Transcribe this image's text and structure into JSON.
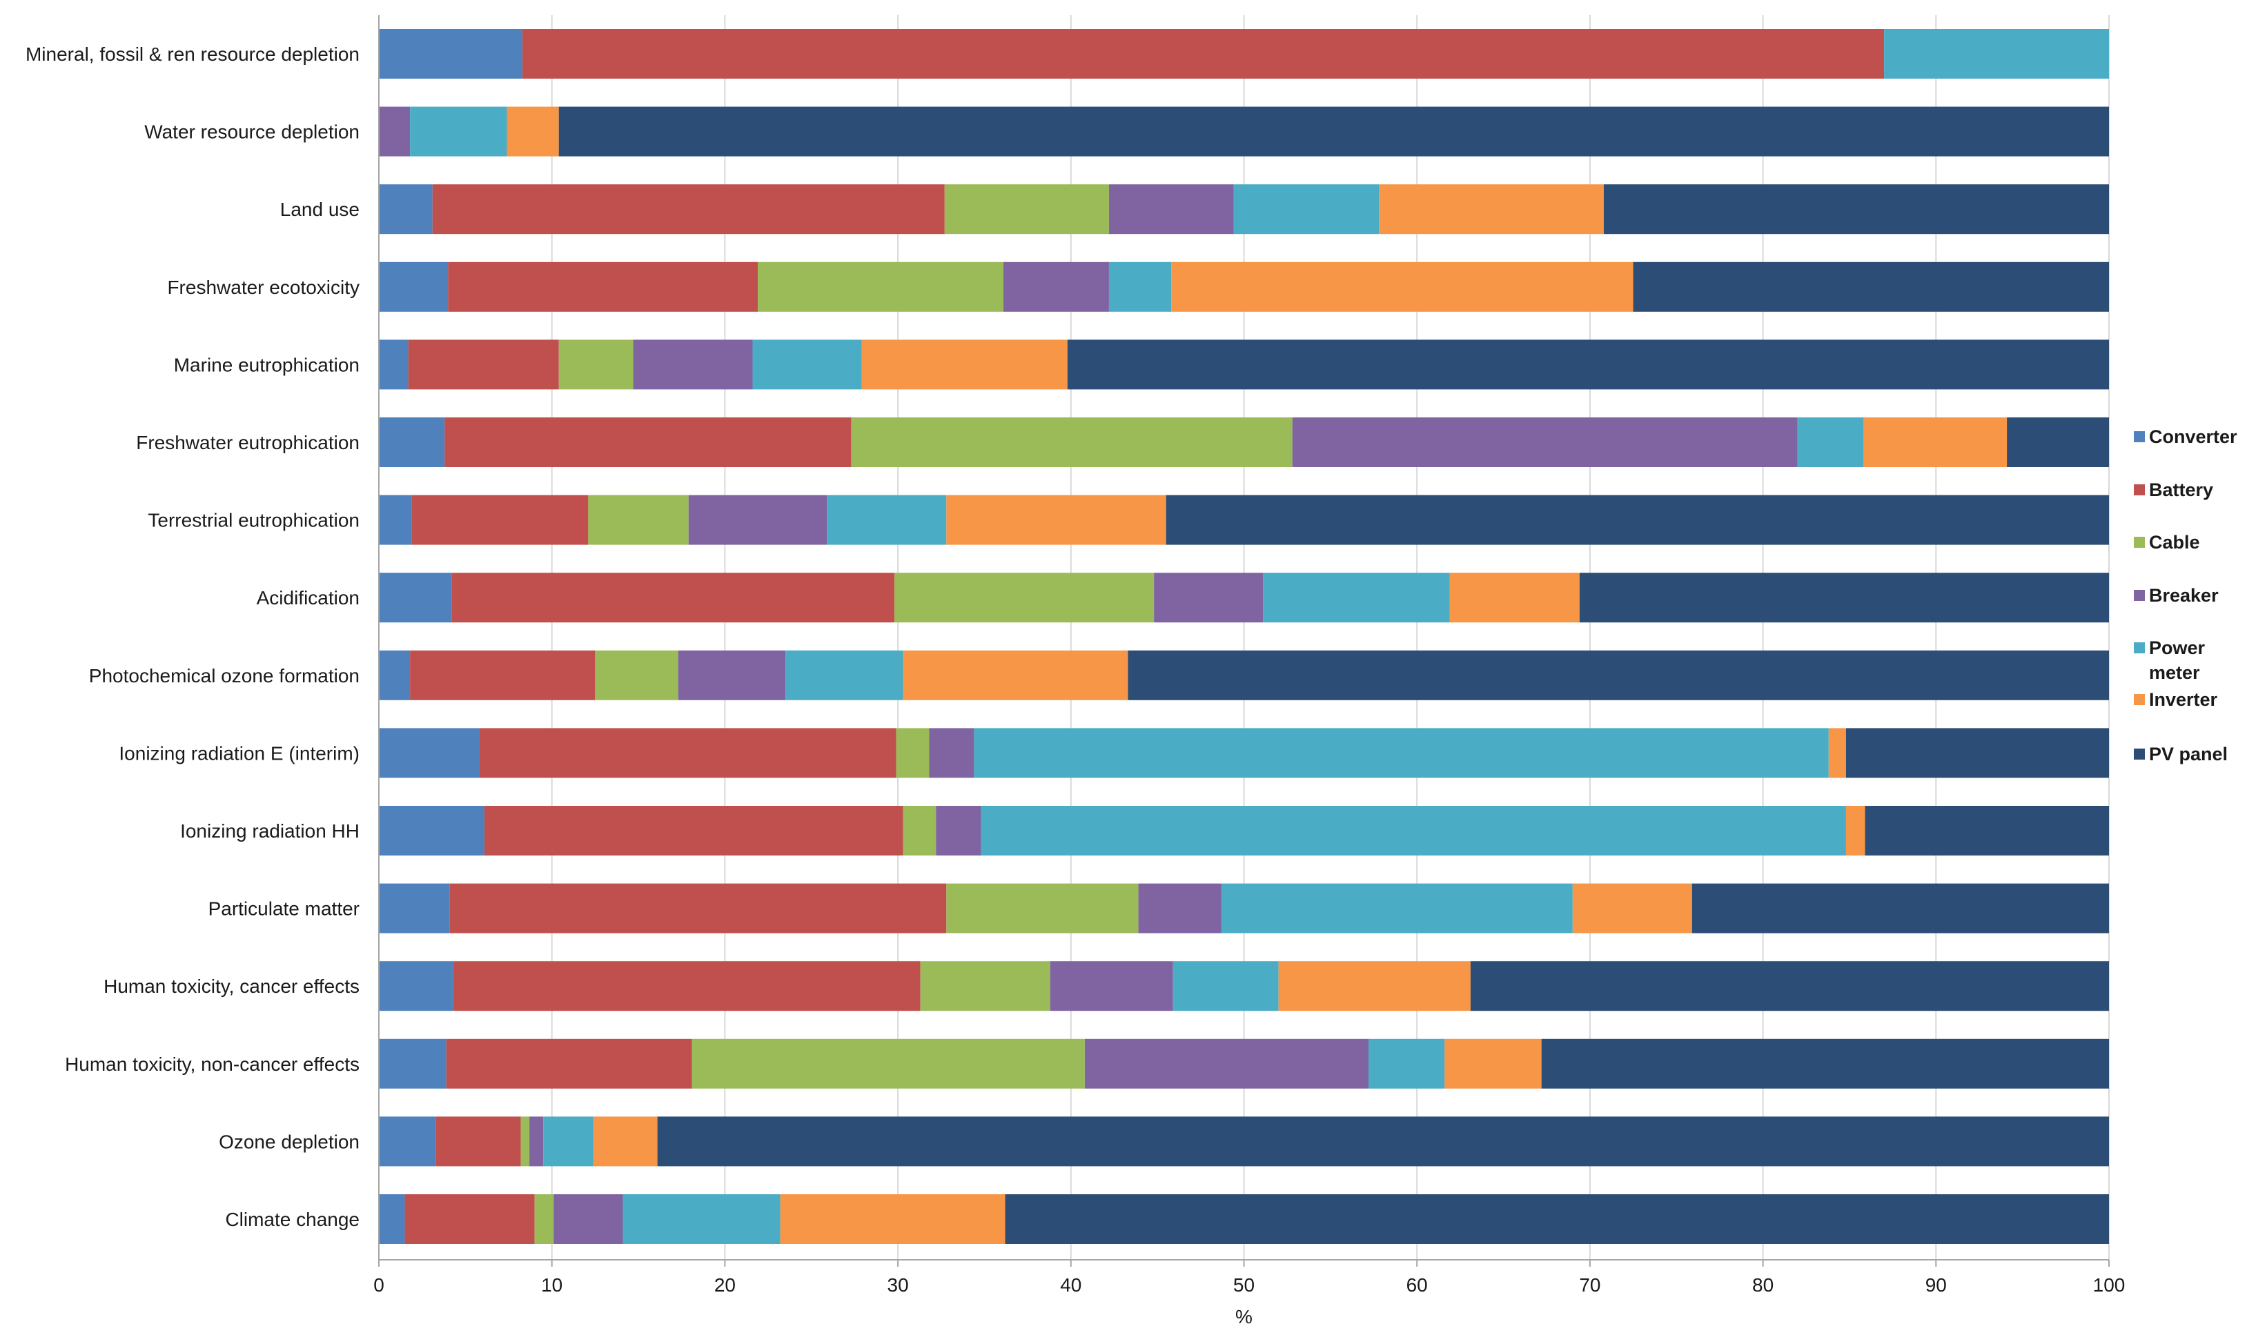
{
  "chart_data": {
    "type": "bar",
    "orientation": "horizontal",
    "stacked": "percent",
    "title": "",
    "xlabel": "%",
    "ylabel": "",
    "xlim": [
      0,
      100
    ],
    "xticks": [
      0,
      10,
      20,
      30,
      40,
      50,
      60,
      70,
      80,
      90,
      100
    ],
    "grid": true,
    "legend_position": "right",
    "categories": [
      "Mineral, fossil & ren resource depletion",
      "Water resource depletion",
      "Land use",
      "Freshwater ecotoxicity",
      "Marine eutrophication",
      "Freshwater eutrophication",
      "Terrestrial eutrophication",
      "Acidification",
      "Photochemical ozone formation",
      "Ionizing radiation E (interim)",
      "Ionizing radiation HH",
      "Particulate matter",
      "Human toxicity, cancer effects",
      "Human toxicity, non-cancer effects",
      "Ozone depletion",
      "Climate change"
    ],
    "series": [
      {
        "name": "Converter",
        "color": "#4f81bd",
        "values": [
          8.3,
          0.0,
          3.1,
          4.0,
          1.7,
          3.8,
          1.9,
          4.2,
          1.8,
          5.8,
          6.1,
          4.1,
          4.3,
          3.9,
          3.3,
          1.5
        ]
      },
      {
        "name": "Battery",
        "color": "#c0504d",
        "values": [
          78.7,
          0.0,
          29.6,
          17.9,
          8.7,
          23.5,
          10.2,
          25.6,
          10.7,
          24.1,
          24.2,
          28.7,
          27.0,
          14.2,
          4.9,
          7.5
        ]
      },
      {
        "name": "Cable",
        "color": "#9bbb59",
        "values": [
          0.0,
          0.0,
          9.5,
          14.2,
          4.3,
          25.5,
          5.8,
          15.0,
          4.8,
          1.9,
          1.9,
          11.1,
          7.5,
          22.7,
          0.5,
          1.1
        ]
      },
      {
        "name": "Breaker",
        "color": "#8064a2",
        "values": [
          0.0,
          1.8,
          7.2,
          6.1,
          6.9,
          29.2,
          8.0,
          6.3,
          6.2,
          2.6,
          2.6,
          4.8,
          7.1,
          16.4,
          0.8,
          4.0
        ]
      },
      {
        "name": "Power meter",
        "color": "#4bacc6",
        "values": [
          13.0,
          5.6,
          8.4,
          3.6,
          6.3,
          3.8,
          6.9,
          10.8,
          6.8,
          49.4,
          50.0,
          20.3,
          6.1,
          4.4,
          2.9,
          9.1
        ]
      },
      {
        "name": "Inverter",
        "color": "#f79646",
        "values": [
          0.0,
          3.0,
          13.0,
          26.7,
          11.9,
          8.3,
          12.7,
          7.5,
          13.0,
          1.0,
          1.1,
          6.9,
          11.1,
          5.6,
          3.7,
          13.0
        ]
      },
      {
        "name": "PV panel",
        "color": "#2c4d75",
        "values": [
          0.0,
          89.6,
          29.2,
          27.5,
          60.2,
          5.9,
          54.5,
          30.6,
          56.7,
          15.2,
          14.1,
          24.1,
          36.9,
          32.8,
          83.9,
          63.8
        ]
      }
    ]
  },
  "legend": {
    "items": [
      {
        "label_line1": "Converter",
        "label_line2": ""
      },
      {
        "label_line1": "Battery",
        "label_line2": ""
      },
      {
        "label_line1": "Cable",
        "label_line2": ""
      },
      {
        "label_line1": "Breaker",
        "label_line2": ""
      },
      {
        "label_line1": "Power",
        "label_line2": "meter"
      },
      {
        "label_line1": "Inverter",
        "label_line2": ""
      },
      {
        "label_line1": "PV panel",
        "label_line2": ""
      }
    ]
  }
}
